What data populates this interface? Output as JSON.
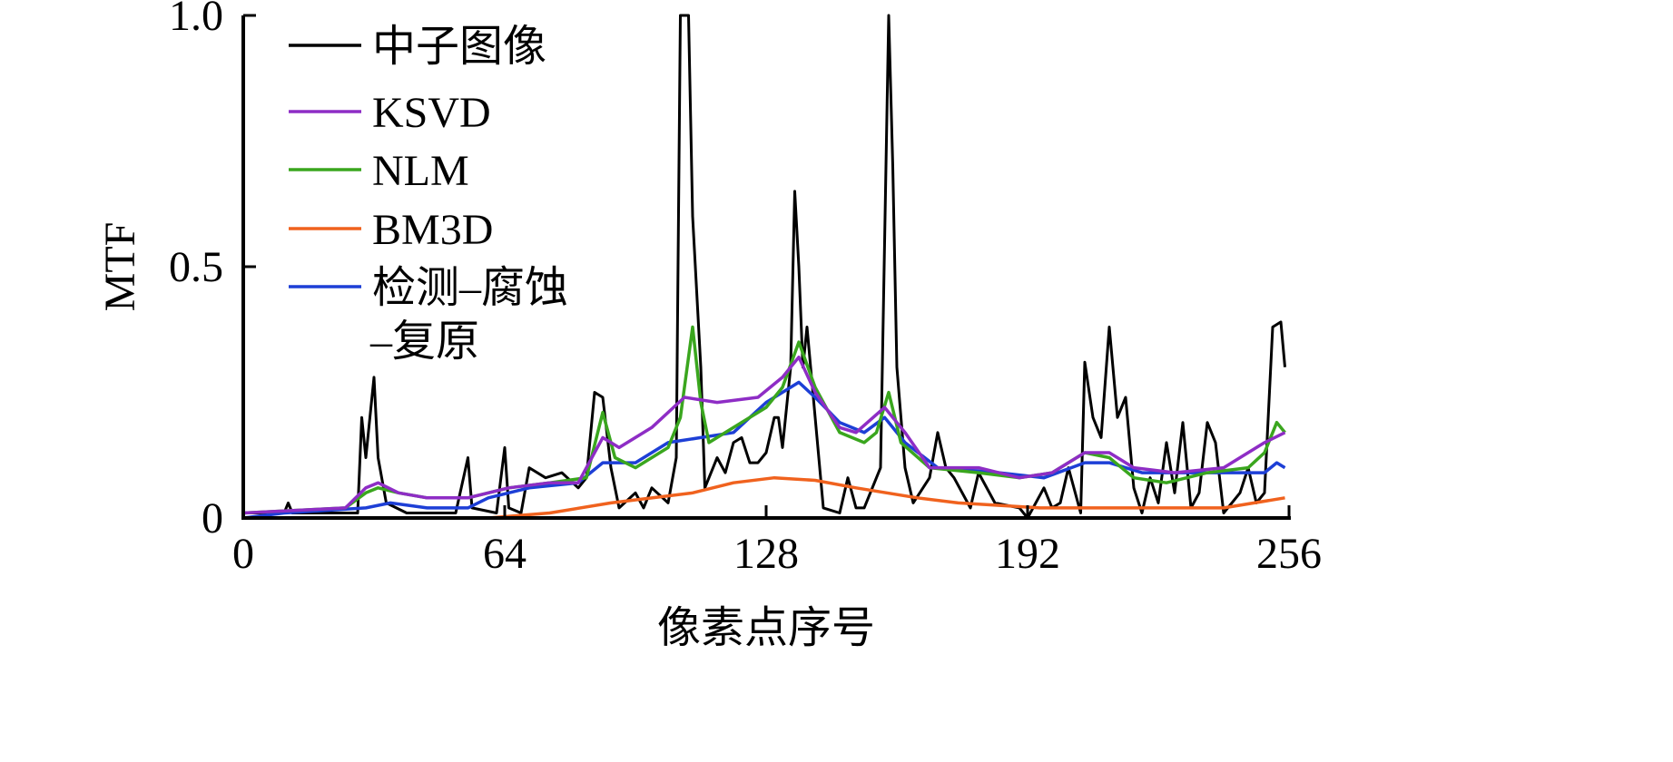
{
  "chart_data": {
    "type": "line",
    "title": "",
    "xlabel": "像素点序号",
    "ylabel": "MTF",
    "xlim": [
      0,
      256
    ],
    "ylim": [
      0,
      1.0
    ],
    "xticks": [
      0,
      64,
      128,
      192,
      256
    ],
    "xtick_labels": [
      "0",
      "64",
      "128",
      "192",
      "256"
    ],
    "yticks": [
      0,
      0.5,
      1.0
    ],
    "ytick_labels": [
      "0",
      "0.5",
      "1.0"
    ],
    "grid": false,
    "legend_position": "top-left",
    "series": [
      {
        "name": "中子图像",
        "color": "#000000",
        "points": [
          [
            0,
            0.01
          ],
          [
            10,
            0.01
          ],
          [
            11,
            0.03
          ],
          [
            12,
            0.01
          ],
          [
            28,
            0.01
          ],
          [
            29,
            0.2
          ],
          [
            30,
            0.12
          ],
          [
            32,
            0.28
          ],
          [
            33,
            0.12
          ],
          [
            35,
            0.03
          ],
          [
            40,
            0.01
          ],
          [
            52,
            0.01
          ],
          [
            55,
            0.12
          ],
          [
            56,
            0.02
          ],
          [
            62,
            0.01
          ],
          [
            64,
            0.14
          ],
          [
            65,
            0.02
          ],
          [
            68,
            0.01
          ],
          [
            70,
            0.1
          ],
          [
            74,
            0.08
          ],
          [
            78,
            0.09
          ],
          [
            82,
            0.06
          ],
          [
            84,
            0.08
          ],
          [
            86,
            0.25
          ],
          [
            88,
            0.24
          ],
          [
            90,
            0.1
          ],
          [
            92,
            0.02
          ],
          [
            96,
            0.05
          ],
          [
            98,
            0.02
          ],
          [
            100,
            0.06
          ],
          [
            104,
            0.03
          ],
          [
            106,
            0.12
          ],
          [
            107,
            1.0
          ],
          [
            109,
            1.0
          ],
          [
            110,
            0.6
          ],
          [
            112,
            0.3
          ],
          [
            113,
            0.06
          ],
          [
            116,
            0.12
          ],
          [
            118,
            0.09
          ],
          [
            120,
            0.15
          ],
          [
            122,
            0.16
          ],
          [
            124,
            0.11
          ],
          [
            126,
            0.11
          ],
          [
            128,
            0.13
          ],
          [
            130,
            0.2
          ],
          [
            131,
            0.2
          ],
          [
            132,
            0.14
          ],
          [
            134,
            0.3
          ],
          [
            135,
            0.65
          ],
          [
            136,
            0.5
          ],
          [
            137,
            0.3
          ],
          [
            138,
            0.38
          ],
          [
            140,
            0.2
          ],
          [
            142,
            0.02
          ],
          [
            146,
            0.01
          ],
          [
            148,
            0.08
          ],
          [
            150,
            0.02
          ],
          [
            152,
            0.02
          ],
          [
            156,
            0.1
          ],
          [
            158,
            1.0
          ],
          [
            159,
            0.7
          ],
          [
            160,
            0.3
          ],
          [
            162,
            0.1
          ],
          [
            164,
            0.03
          ],
          [
            168,
            0.08
          ],
          [
            170,
            0.17
          ],
          [
            172,
            0.1
          ],
          [
            174,
            0.08
          ],
          [
            178,
            0.02
          ],
          [
            180,
            0.09
          ],
          [
            184,
            0.03
          ],
          [
            190,
            0.02
          ],
          [
            192,
            0.0
          ],
          [
            196,
            0.06
          ],
          [
            198,
            0.02
          ],
          [
            200,
            0.03
          ],
          [
            202,
            0.1
          ],
          [
            205,
            0.01
          ],
          [
            206,
            0.31
          ],
          [
            208,
            0.2
          ],
          [
            210,
            0.16
          ],
          [
            212,
            0.38
          ],
          [
            214,
            0.2
          ],
          [
            216,
            0.24
          ],
          [
            218,
            0.06
          ],
          [
            220,
            0.01
          ],
          [
            222,
            0.08
          ],
          [
            224,
            0.03
          ],
          [
            226,
            0.15
          ],
          [
            228,
            0.05
          ],
          [
            230,
            0.19
          ],
          [
            232,
            0.02
          ],
          [
            234,
            0.05
          ],
          [
            236,
            0.19
          ],
          [
            238,
            0.15
          ],
          [
            240,
            0.01
          ],
          [
            242,
            0.03
          ],
          [
            244,
            0.05
          ],
          [
            246,
            0.1
          ],
          [
            248,
            0.03
          ],
          [
            250,
            0.05
          ],
          [
            252,
            0.38
          ],
          [
            254,
            0.39
          ],
          [
            255,
            0.3
          ]
        ]
      },
      {
        "name": "KSVD",
        "color": "#8e2dc5",
        "points": [
          [
            0,
            0.01
          ],
          [
            25,
            0.02
          ],
          [
            30,
            0.06
          ],
          [
            33,
            0.07
          ],
          [
            38,
            0.05
          ],
          [
            45,
            0.04
          ],
          [
            55,
            0.04
          ],
          [
            65,
            0.06
          ],
          [
            75,
            0.07
          ],
          [
            82,
            0.07
          ],
          [
            88,
            0.16
          ],
          [
            92,
            0.14
          ],
          [
            100,
            0.18
          ],
          [
            108,
            0.24
          ],
          [
            116,
            0.23
          ],
          [
            126,
            0.24
          ],
          [
            132,
            0.28
          ],
          [
            136,
            0.32
          ],
          [
            140,
            0.25
          ],
          [
            146,
            0.18
          ],
          [
            150,
            0.17
          ],
          [
            157,
            0.22
          ],
          [
            162,
            0.17
          ],
          [
            168,
            0.1
          ],
          [
            180,
            0.1
          ],
          [
            190,
            0.08
          ],
          [
            198,
            0.09
          ],
          [
            206,
            0.13
          ],
          [
            212,
            0.13
          ],
          [
            218,
            0.1
          ],
          [
            228,
            0.09
          ],
          [
            240,
            0.1
          ],
          [
            250,
            0.15
          ],
          [
            255,
            0.17
          ]
        ]
      },
      {
        "name": "NLM",
        "color": "#3aa61e",
        "points": [
          [
            0,
            0.01
          ],
          [
            25,
            0.02
          ],
          [
            30,
            0.05
          ],
          [
            33,
            0.06
          ],
          [
            38,
            0.05
          ],
          [
            45,
            0.04
          ],
          [
            55,
            0.04
          ],
          [
            65,
            0.06
          ],
          [
            75,
            0.07
          ],
          [
            84,
            0.08
          ],
          [
            88,
            0.21
          ],
          [
            91,
            0.12
          ],
          [
            96,
            0.1
          ],
          [
            104,
            0.14
          ],
          [
            107,
            0.2
          ],
          [
            110,
            0.38
          ],
          [
            112,
            0.23
          ],
          [
            114,
            0.15
          ],
          [
            120,
            0.18
          ],
          [
            128,
            0.22
          ],
          [
            132,
            0.26
          ],
          [
            136,
            0.35
          ],
          [
            140,
            0.26
          ],
          [
            146,
            0.17
          ],
          [
            152,
            0.15
          ],
          [
            155,
            0.17
          ],
          [
            158,
            0.25
          ],
          [
            161,
            0.15
          ],
          [
            168,
            0.1
          ],
          [
            180,
            0.09
          ],
          [
            190,
            0.08
          ],
          [
            198,
            0.09
          ],
          [
            206,
            0.13
          ],
          [
            212,
            0.12
          ],
          [
            218,
            0.08
          ],
          [
            226,
            0.07
          ],
          [
            236,
            0.09
          ],
          [
            246,
            0.1
          ],
          [
            250,
            0.13
          ],
          [
            253,
            0.19
          ],
          [
            255,
            0.17
          ]
        ]
      },
      {
        "name": "BM3D",
        "color": "#f0621e",
        "points": [
          [
            0,
            0.0
          ],
          [
            60,
            0.0
          ],
          [
            75,
            0.01
          ],
          [
            90,
            0.03
          ],
          [
            110,
            0.05
          ],
          [
            120,
            0.07
          ],
          [
            130,
            0.08
          ],
          [
            140,
            0.075
          ],
          [
            150,
            0.06
          ],
          [
            165,
            0.04
          ],
          [
            175,
            0.03
          ],
          [
            195,
            0.02
          ],
          [
            220,
            0.02
          ],
          [
            240,
            0.02
          ],
          [
            255,
            0.04
          ]
        ]
      },
      {
        "name": "检测–腐蚀–复原",
        "color": "#1d3fd6",
        "points": [
          [
            0,
            0.0
          ],
          [
            10,
            0.01
          ],
          [
            30,
            0.02
          ],
          [
            36,
            0.03
          ],
          [
            45,
            0.02
          ],
          [
            55,
            0.02
          ],
          [
            60,
            0.04
          ],
          [
            70,
            0.06
          ],
          [
            82,
            0.07
          ],
          [
            88,
            0.11
          ],
          [
            96,
            0.11
          ],
          [
            104,
            0.15
          ],
          [
            112,
            0.16
          ],
          [
            120,
            0.17
          ],
          [
            128,
            0.23
          ],
          [
            136,
            0.27
          ],
          [
            140,
            0.24
          ],
          [
            146,
            0.19
          ],
          [
            152,
            0.17
          ],
          [
            157,
            0.2
          ],
          [
            162,
            0.15
          ],
          [
            170,
            0.1
          ],
          [
            185,
            0.09
          ],
          [
            196,
            0.08
          ],
          [
            206,
            0.11
          ],
          [
            212,
            0.11
          ],
          [
            220,
            0.09
          ],
          [
            235,
            0.09
          ],
          [
            245,
            0.09
          ],
          [
            250,
            0.09
          ],
          [
            253,
            0.11
          ],
          [
            255,
            0.1
          ]
        ]
      }
    ],
    "legend": {
      "entries": [
        "中子图像",
        "KSVD",
        "NLM",
        "BM3D",
        "检测–腐蚀"
      ],
      "continuation": "–复原"
    }
  }
}
